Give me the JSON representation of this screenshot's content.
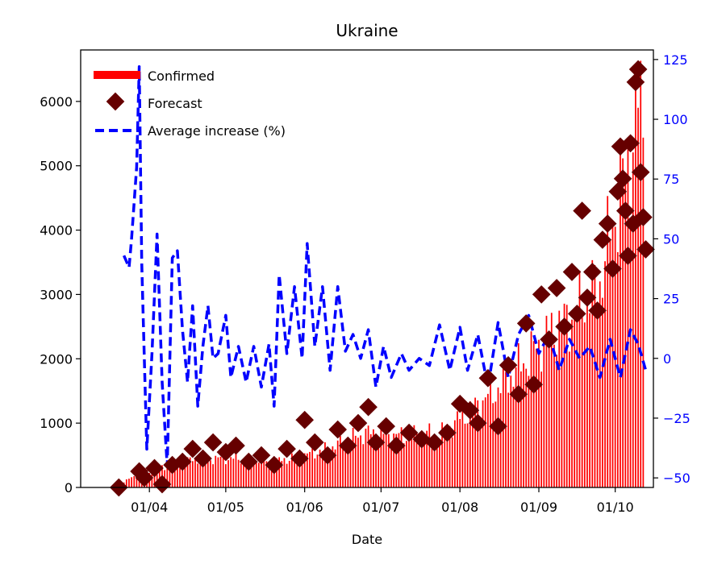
{
  "chart_data": {
    "type": "bar",
    "title": "Ukraine",
    "xlabel": "Date",
    "ylabel": "",
    "ylabel_right": "",
    "x_ticks": [
      "01/04",
      "01/05",
      "01/06",
      "01/07",
      "01/08",
      "01/09",
      "01/10"
    ],
    "y_ticks": [
      0,
      1000,
      2000,
      3000,
      4000,
      5000,
      6000
    ],
    "y2_ticks": [
      -50,
      -25,
      0,
      25,
      50,
      75,
      100,
      125
    ],
    "ylim": [
      0,
      6800
    ],
    "y2lim": [
      -54,
      129
    ],
    "x_range": [
      "2020-03-05",
      "2020-10-16"
    ],
    "legend_position": "upper-left",
    "grid": false,
    "colors": {
      "confirmed": "#ff0000",
      "forecast": "#660000",
      "average_increase": "#0000ff",
      "right_axis": "#0000ff"
    },
    "series": [
      {
        "name": "Confirmed",
        "kind": "bar",
        "axis": "left",
        "dates_start": "2020-03-17",
        "dates_end": "2020-10-12",
        "anchors": [
          [
            "2020-03-17",
            0
          ],
          [
            "2020-03-25",
            150
          ],
          [
            "2020-04-05",
            300
          ],
          [
            "2020-04-20",
            450
          ],
          [
            "2020-05-05",
            450
          ],
          [
            "2020-05-20",
            400
          ],
          [
            "2020-06-01",
            500
          ],
          [
            "2020-06-10",
            600
          ],
          [
            "2020-06-25",
            850
          ],
          [
            "2020-07-10",
            800
          ],
          [
            "2020-07-25",
            850
          ],
          [
            "2020-08-05",
            1200
          ],
          [
            "2020-08-15",
            1500
          ],
          [
            "2020-08-25",
            1900
          ],
          [
            "2020-09-05",
            2400
          ],
          [
            "2020-09-15",
            2700
          ],
          [
            "2020-09-25",
            3200
          ],
          [
            "2020-10-01",
            4300
          ],
          [
            "2020-10-06",
            5000
          ],
          [
            "2020-10-10",
            5900
          ],
          [
            "2020-10-12",
            5800
          ]
        ]
      },
      {
        "name": "Forecast",
        "kind": "scatter",
        "axis": "left",
        "points": [
          [
            "2020-03-20",
            0
          ],
          [
            "2020-03-28",
            250
          ],
          [
            "2020-03-30",
            150
          ],
          [
            "2020-04-03",
            300
          ],
          [
            "2020-04-06",
            50
          ],
          [
            "2020-04-10",
            350
          ],
          [
            "2020-04-14",
            400
          ],
          [
            "2020-04-18",
            600
          ],
          [
            "2020-04-22",
            450
          ],
          [
            "2020-04-26",
            700
          ],
          [
            "2020-05-01",
            550
          ],
          [
            "2020-05-05",
            650
          ],
          [
            "2020-05-10",
            400
          ],
          [
            "2020-05-15",
            500
          ],
          [
            "2020-05-20",
            350
          ],
          [
            "2020-05-25",
            600
          ],
          [
            "2020-05-30",
            450
          ],
          [
            "2020-06-01",
            1050
          ],
          [
            "2020-06-05",
            700
          ],
          [
            "2020-06-10",
            500
          ],
          [
            "2020-06-14",
            900
          ],
          [
            "2020-06-18",
            650
          ],
          [
            "2020-06-22",
            1000
          ],
          [
            "2020-06-26",
            1250
          ],
          [
            "2020-06-29",
            700
          ],
          [
            "2020-07-03",
            950
          ],
          [
            "2020-07-07",
            650
          ],
          [
            "2020-07-12",
            850
          ],
          [
            "2020-07-17",
            750
          ],
          [
            "2020-07-22",
            700
          ],
          [
            "2020-07-27",
            850
          ],
          [
            "2020-08-01",
            1300
          ],
          [
            "2020-08-05",
            1200
          ],
          [
            "2020-08-08",
            1000
          ],
          [
            "2020-08-12",
            1700
          ],
          [
            "2020-08-16",
            950
          ],
          [
            "2020-08-20",
            1900
          ],
          [
            "2020-08-24",
            1450
          ],
          [
            "2020-08-27",
            2550
          ],
          [
            "2020-08-30",
            1600
          ],
          [
            "2020-09-02",
            3000
          ],
          [
            "2020-09-05",
            2300
          ],
          [
            "2020-09-08",
            3100
          ],
          [
            "2020-09-11",
            2500
          ],
          [
            "2020-09-14",
            3350
          ],
          [
            "2020-09-16",
            2700
          ],
          [
            "2020-09-18",
            4300
          ],
          [
            "2020-09-20",
            2950
          ],
          [
            "2020-09-22",
            3350
          ],
          [
            "2020-09-24",
            2750
          ],
          [
            "2020-09-26",
            3850
          ],
          [
            "2020-09-28",
            4100
          ],
          [
            "2020-09-30",
            3400
          ],
          [
            "2020-10-02",
            4600
          ],
          [
            "2020-10-03",
            5300
          ],
          [
            "2020-10-04",
            4800
          ],
          [
            "2020-10-05",
            4300
          ],
          [
            "2020-10-06",
            3600
          ],
          [
            "2020-10-07",
            5350
          ],
          [
            "2020-10-08",
            4100
          ],
          [
            "2020-10-09",
            6300
          ],
          [
            "2020-10-10",
            6500
          ],
          [
            "2020-10-11",
            4900
          ],
          [
            "2020-10-12",
            4200
          ],
          [
            "2020-10-13",
            3700
          ]
        ]
      },
      {
        "name": "Average increase (%)",
        "kind": "line",
        "axis": "right",
        "dashed": true,
        "points": [
          [
            "2020-03-22",
            43
          ],
          [
            "2020-03-24",
            38
          ],
          [
            "2020-03-25",
            50
          ],
          [
            "2020-03-27",
            80
          ],
          [
            "2020-03-28",
            122
          ],
          [
            "2020-03-29",
            40
          ],
          [
            "2020-03-30",
            0
          ],
          [
            "2020-03-31",
            -38
          ],
          [
            "2020-04-02",
            2
          ],
          [
            "2020-04-04",
            52
          ],
          [
            "2020-04-06",
            -10
          ],
          [
            "2020-04-08",
            -45
          ],
          [
            "2020-04-10",
            42
          ],
          [
            "2020-04-12",
            45
          ],
          [
            "2020-04-14",
            12
          ],
          [
            "2020-04-16",
            -10
          ],
          [
            "2020-04-18",
            22
          ],
          [
            "2020-04-20",
            -20
          ],
          [
            "2020-04-22",
            5
          ],
          [
            "2020-04-24",
            22
          ],
          [
            "2020-04-26",
            0
          ],
          [
            "2020-04-28",
            2
          ],
          [
            "2020-05-01",
            18
          ],
          [
            "2020-05-03",
            -8
          ],
          [
            "2020-05-06",
            5
          ],
          [
            "2020-05-09",
            -10
          ],
          [
            "2020-05-12",
            5
          ],
          [
            "2020-05-15",
            -12
          ],
          [
            "2020-05-18",
            6
          ],
          [
            "2020-05-20",
            -20
          ],
          [
            "2020-05-22",
            35
          ],
          [
            "2020-05-25",
            2
          ],
          [
            "2020-05-28",
            30
          ],
          [
            "2020-05-31",
            0
          ],
          [
            "2020-06-02",
            48
          ],
          [
            "2020-06-05",
            5
          ],
          [
            "2020-06-08",
            30
          ],
          [
            "2020-06-11",
            -5
          ],
          [
            "2020-06-14",
            30
          ],
          [
            "2020-06-17",
            3
          ],
          [
            "2020-06-20",
            10
          ],
          [
            "2020-06-23",
            0
          ],
          [
            "2020-06-26",
            12
          ],
          [
            "2020-06-29",
            -12
          ],
          [
            "2020-07-02",
            5
          ],
          [
            "2020-07-05",
            -8
          ],
          [
            "2020-07-09",
            2
          ],
          [
            "2020-07-12",
            -5
          ],
          [
            "2020-07-16",
            0
          ],
          [
            "2020-07-20",
            -3
          ],
          [
            "2020-07-24",
            14
          ],
          [
            "2020-07-28",
            -5
          ],
          [
            "2020-08-01",
            13
          ],
          [
            "2020-08-04",
            -5
          ],
          [
            "2020-08-08",
            10
          ],
          [
            "2020-08-12",
            -12
          ],
          [
            "2020-08-16",
            15
          ],
          [
            "2020-08-20",
            -8
          ],
          [
            "2020-08-24",
            10
          ],
          [
            "2020-08-28",
            18
          ],
          [
            "2020-09-01",
            2
          ],
          [
            "2020-09-05",
            10
          ],
          [
            "2020-09-09",
            -5
          ],
          [
            "2020-09-13",
            8
          ],
          [
            "2020-09-17",
            0
          ],
          [
            "2020-09-21",
            5
          ],
          [
            "2020-09-25",
            -8
          ],
          [
            "2020-09-29",
            8
          ],
          [
            "2020-10-03",
            -8
          ],
          [
            "2020-10-07",
            12
          ],
          [
            "2020-10-10",
            6
          ],
          [
            "2020-10-13",
            -5
          ]
        ]
      }
    ]
  }
}
